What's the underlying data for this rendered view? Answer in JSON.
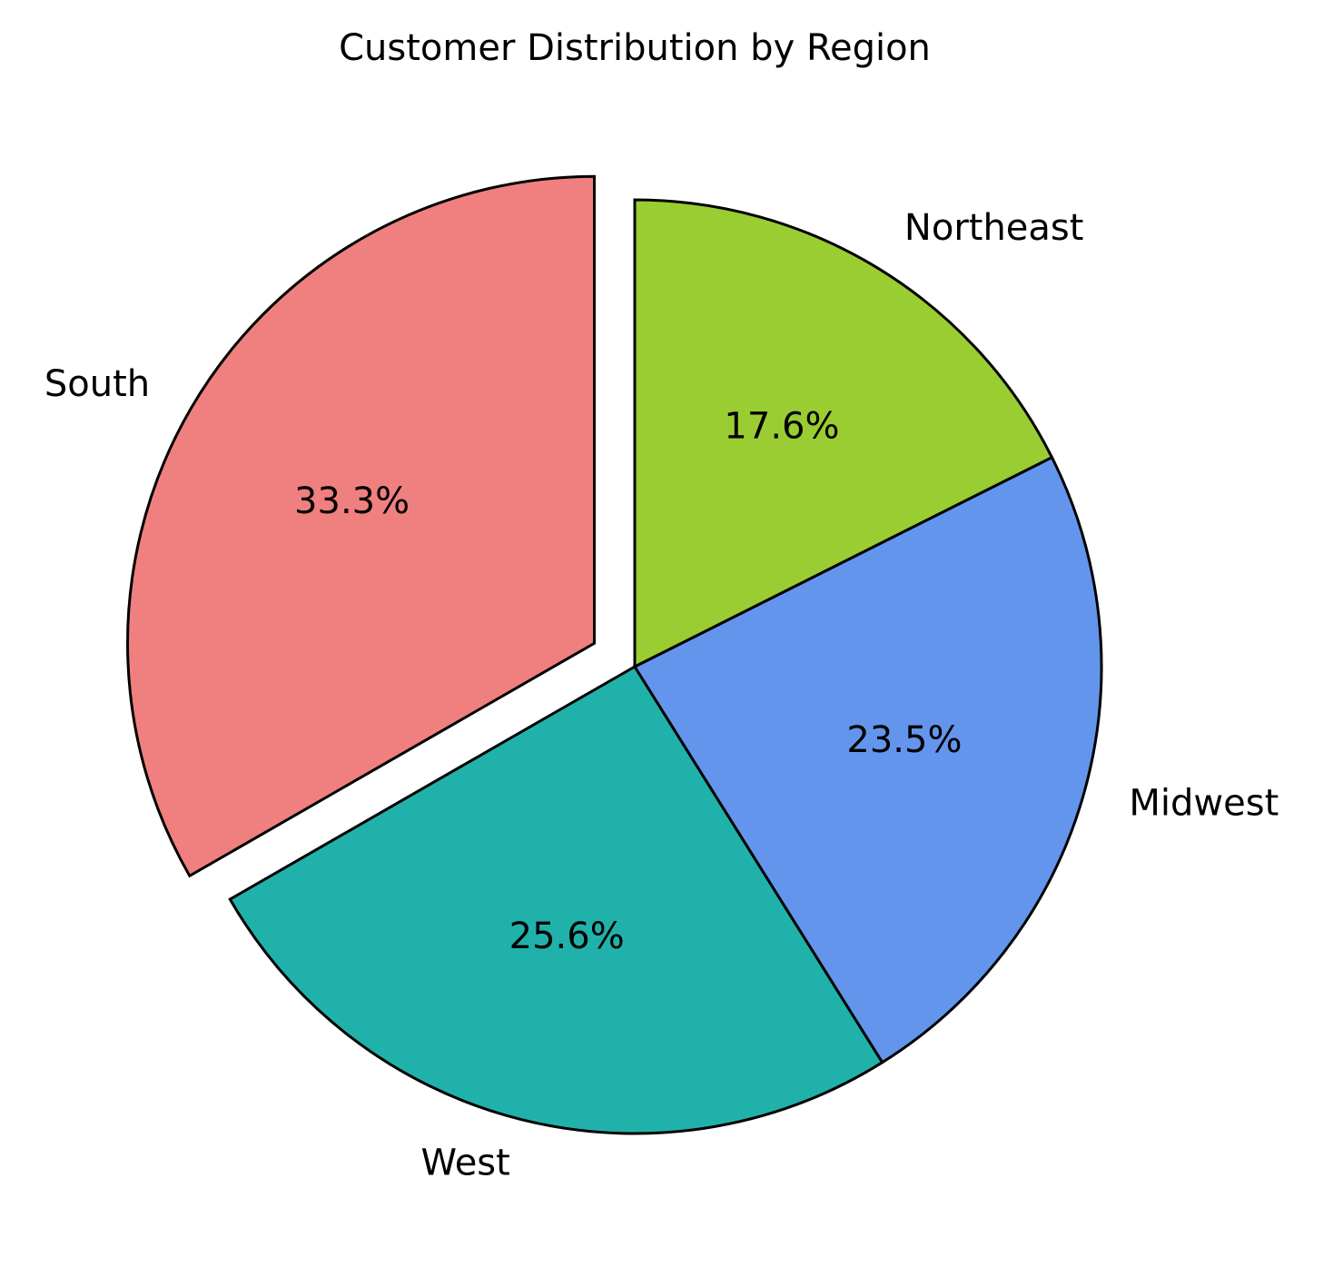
{
  "chart_data": {
    "type": "pie",
    "title": "Customer Distribution by Region",
    "start_angle_deg": 90,
    "direction": "counterclockwise",
    "slices": [
      {
        "label": "South",
        "value": 33.3,
        "percent_label": "33.3%",
        "color": "#F08080",
        "exploded": true
      },
      {
        "label": "West",
        "value": 25.6,
        "percent_label": "25.6%",
        "color": "#20B2AA",
        "exploded": false
      },
      {
        "label": "Midwest",
        "value": 23.5,
        "percent_label": "23.5%",
        "color": "#6495ED",
        "exploded": false
      },
      {
        "label": "Northeast",
        "value": 17.6,
        "percent_label": "17.6%",
        "color": "#9ACD32",
        "exploded": false
      }
    ],
    "legend": "none",
    "grid": false
  }
}
